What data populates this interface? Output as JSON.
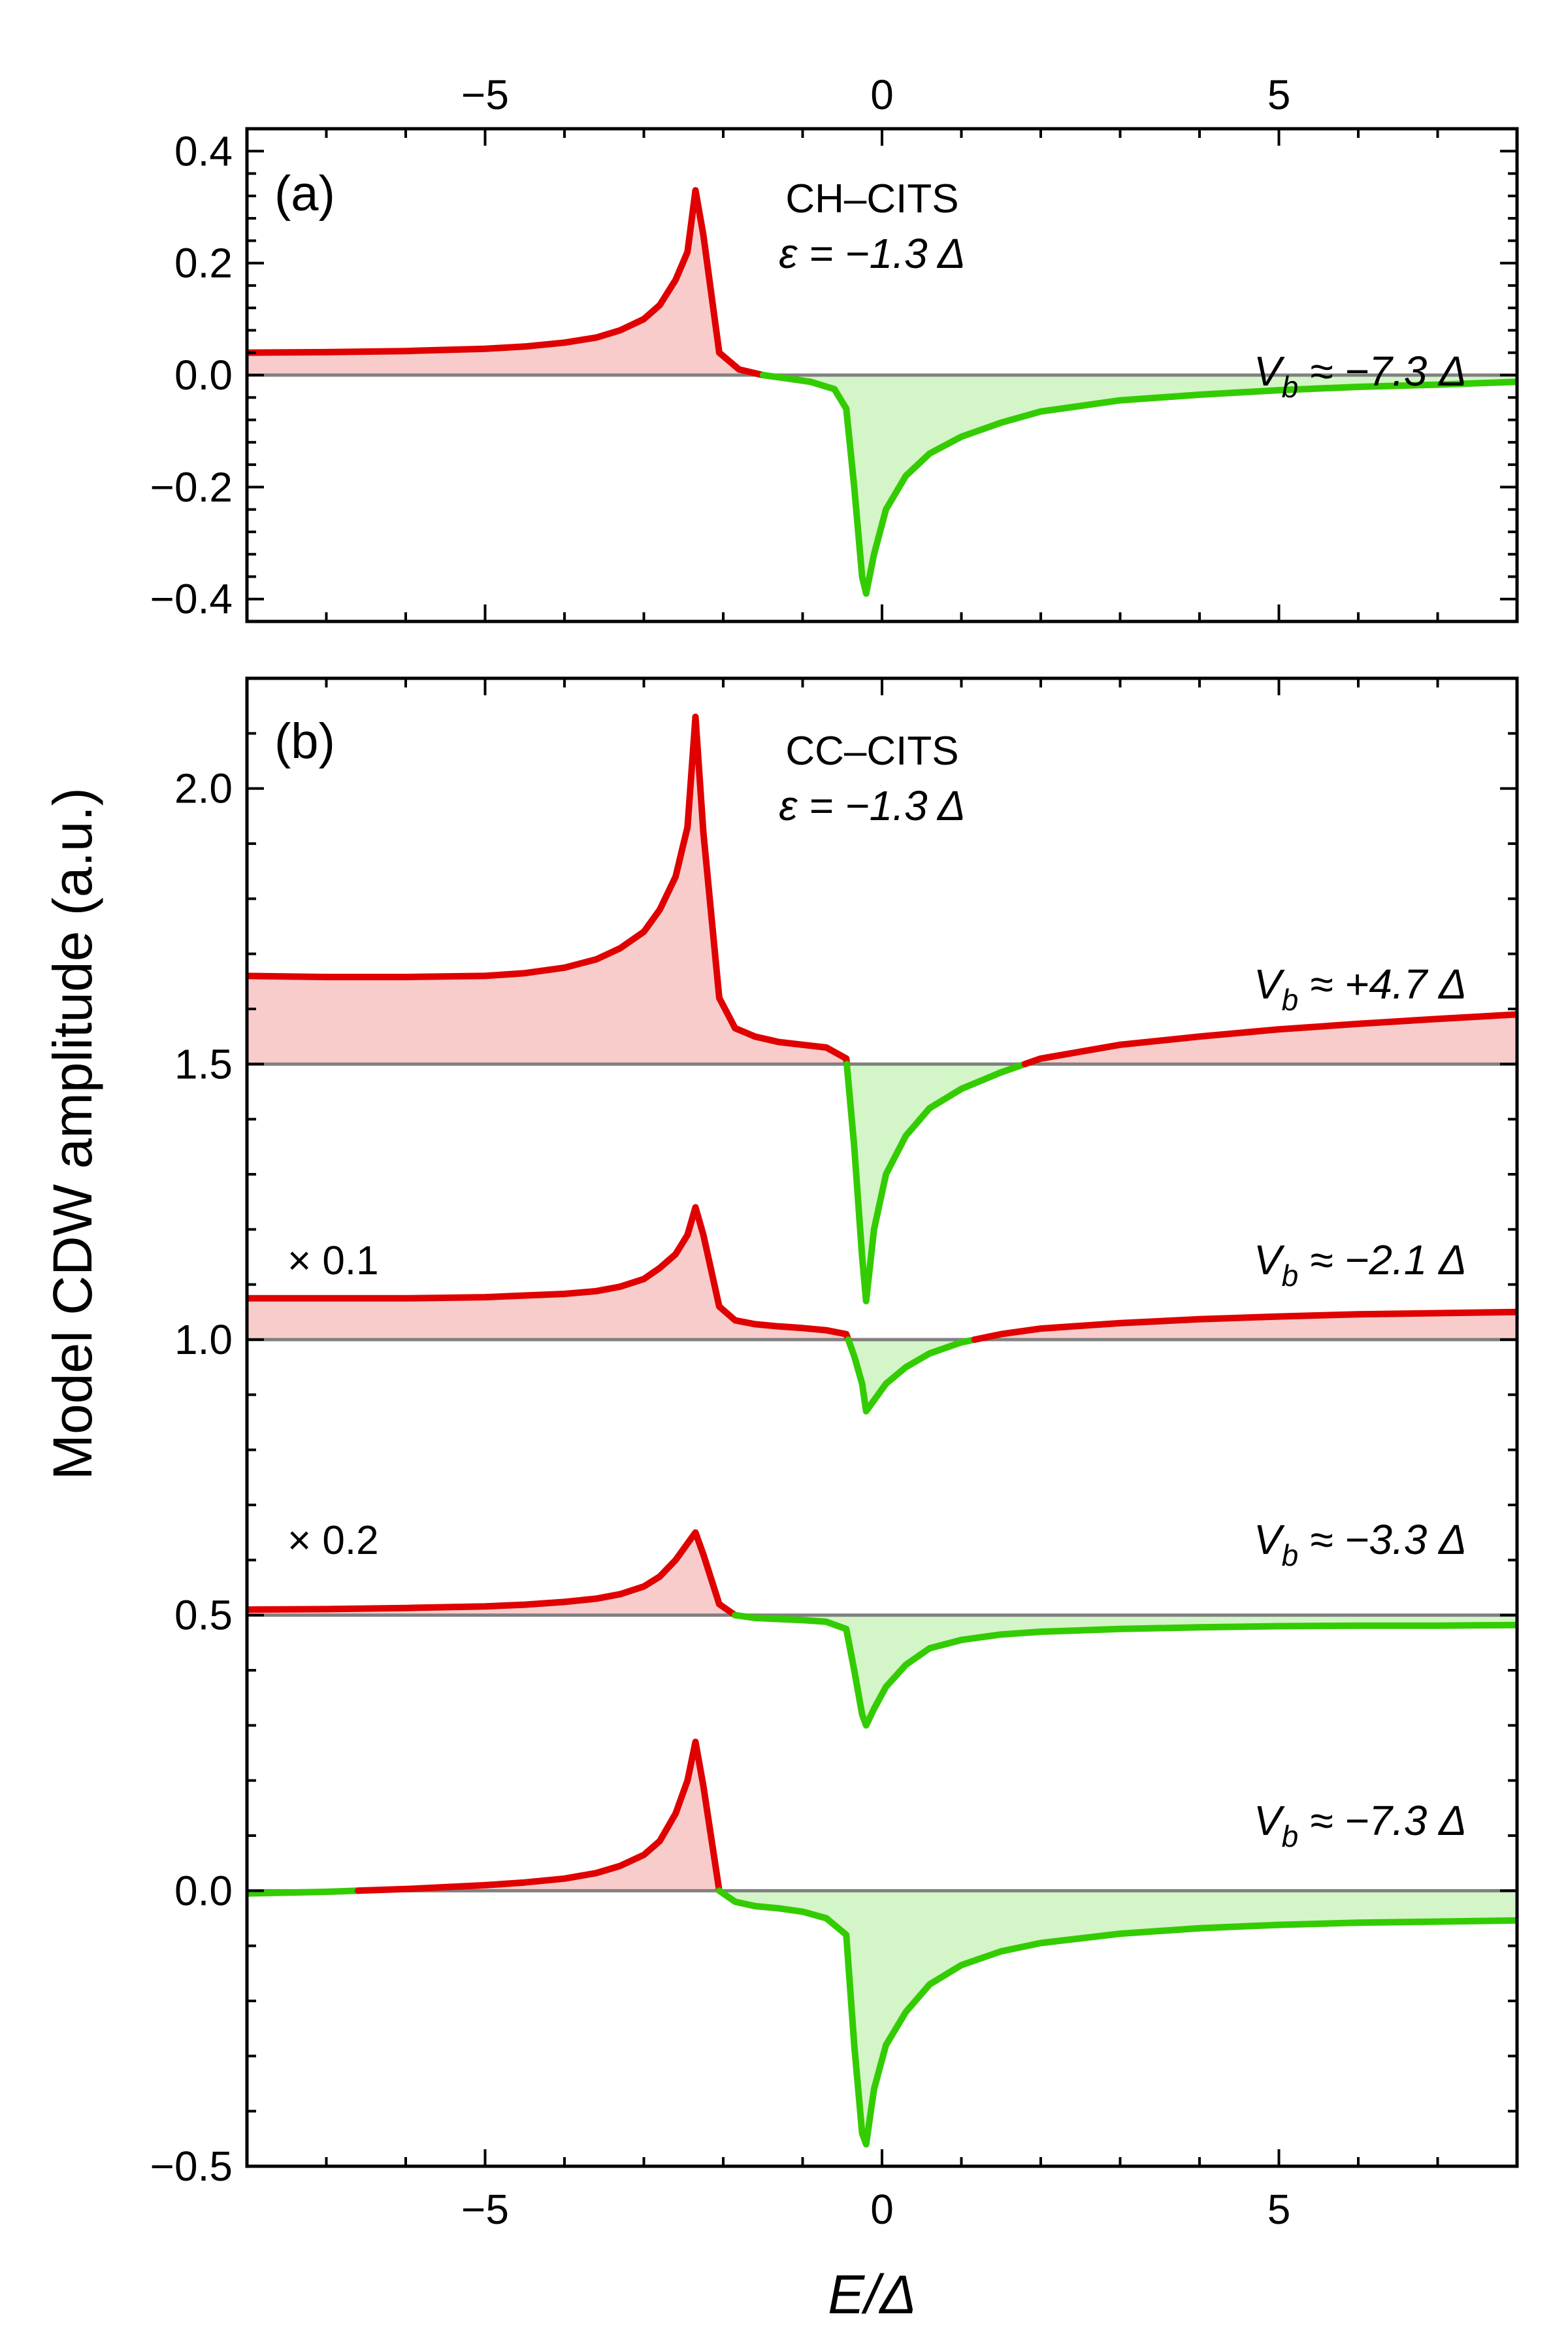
{
  "chart_data": [
    {
      "id": "a",
      "type": "line",
      "panel_label": "(a)",
      "title": "CH–CITS",
      "subtitle": "ε = −1.3 Δ",
      "xlabel": "",
      "ylabel": "",
      "xlim": [
        -8,
        8
      ],
      "ylim": [
        -0.44,
        0.44
      ],
      "xticks": [
        -5,
        0,
        5
      ],
      "xtick_labels": [
        "−5",
        "0",
        "5"
      ],
      "xtick_position": "top",
      "yticks": [
        0.4,
        0.2,
        0.0,
        -0.2,
        -0.4
      ],
      "ytick_labels": [
        "0.4",
        "0.2",
        "0.0",
        "−0.2",
        "−0.4"
      ],
      "colors": {
        "positive": "#e00000",
        "negative": "#33cc00",
        "positive_fill": "#f9cccc",
        "negative_fill": "#d4f5c8",
        "baseline": "#808080"
      },
      "series": [
        {
          "name": "Vb ≈ −7.3 Δ",
          "label_main": "V",
          "label_sub": "b",
          "label_rest": " ≈ −7.3 Δ",
          "offset": 0.0,
          "scale_note": "",
          "x": [
            -8,
            -7,
            -6,
            -5,
            -4.5,
            -4,
            -3.6,
            -3.3,
            -3.0,
            -2.8,
            -2.6,
            -2.45,
            -2.35,
            -2.25,
            -2.05,
            -1.8,
            -1.5,
            -1.2,
            -0.9,
            -0.6,
            -0.45,
            -0.35,
            -0.25,
            -0.2,
            -0.1,
            0.05,
            0.3,
            0.6,
            1.0,
            1.5,
            2.0,
            3.0,
            4.0,
            5.0,
            6.0,
            7.0,
            8.0
          ],
          "y": [
            0.04,
            0.041,
            0.043,
            0.047,
            0.051,
            0.058,
            0.067,
            0.08,
            0.1,
            0.125,
            0.17,
            0.22,
            0.33,
            0.25,
            0.04,
            0.01,
            0.0,
            -0.006,
            -0.012,
            -0.025,
            -0.06,
            -0.2,
            -0.36,
            -0.39,
            -0.32,
            -0.24,
            -0.18,
            -0.14,
            -0.11,
            -0.085,
            -0.065,
            -0.045,
            -0.035,
            -0.027,
            -0.021,
            -0.017,
            -0.012
          ]
        }
      ]
    },
    {
      "id": "b",
      "type": "line",
      "panel_label": "(b)",
      "title": "CC–CITS",
      "subtitle": "ε = −1.3 Δ",
      "xlabel": "E/Δ",
      "ylabel": "Model CDW amplitude (a.u.)",
      "xlim": [
        -8,
        8
      ],
      "ylim": [
        -0.5,
        2.2
      ],
      "xticks": [
        -5,
        0,
        5
      ],
      "xtick_labels": [
        "−5",
        "0",
        "5"
      ],
      "xtick_position": "bottom",
      "yticks": [
        2.0,
        1.5,
        1.0,
        0.5,
        0.0,
        -0.5
      ],
      "ytick_labels": [
        "2.0",
        "1.5",
        "1.0",
        "0.5",
        "0.0",
        "−0.5"
      ],
      "colors": {
        "positive": "#e00000",
        "negative": "#33cc00",
        "positive_fill": "#f9cccc",
        "negative_fill": "#d4f5c8",
        "baseline": "#808080"
      },
      "series": [
        {
          "name": "Vb ≈ +4.7 Δ",
          "label_main": "V",
          "label_sub": "b",
          "label_rest": " ≈ +4.7 Δ",
          "offset": 1.5,
          "scale_note": "",
          "x": [
            -8,
            -7,
            -6,
            -5,
            -4.5,
            -4,
            -3.6,
            -3.3,
            -3.0,
            -2.8,
            -2.6,
            -2.45,
            -2.35,
            -2.25,
            -2.05,
            -1.85,
            -1.6,
            -1.3,
            -1.0,
            -0.7,
            -0.45,
            -0.35,
            -0.25,
            -0.2,
            -0.1,
            0.05,
            0.3,
            0.6,
            1.0,
            1.5,
            2.0,
            3.0,
            4.0,
            5.0,
            6.0,
            7.0,
            8.0
          ],
          "y": [
            0.16,
            0.158,
            0.158,
            0.16,
            0.165,
            0.175,
            0.19,
            0.21,
            0.24,
            0.28,
            0.34,
            0.43,
            0.63,
            0.42,
            0.12,
            0.065,
            0.05,
            0.04,
            0.035,
            0.03,
            0.01,
            -0.15,
            -0.35,
            -0.43,
            -0.3,
            -0.2,
            -0.13,
            -0.08,
            -0.045,
            -0.015,
            0.01,
            0.035,
            0.05,
            0.063,
            0.073,
            0.082,
            0.09
          ]
        },
        {
          "name": "Vb ≈ −2.1 Δ",
          "label_main": "V",
          "label_sub": "b",
          "label_rest": " ≈ −2.1 Δ",
          "offset": 1.0,
          "scale_note": "× 0.1",
          "x": [
            -8,
            -7,
            -6,
            -5,
            -4.5,
            -4,
            -3.6,
            -3.3,
            -3.0,
            -2.8,
            -2.6,
            -2.45,
            -2.35,
            -2.25,
            -2.05,
            -1.85,
            -1.6,
            -1.3,
            -1.0,
            -0.7,
            -0.45,
            -0.35,
            -0.25,
            -0.2,
            -0.1,
            0.05,
            0.3,
            0.6,
            1.0,
            1.5,
            2.0,
            3.0,
            4.0,
            5.0,
            6.0,
            7.0,
            8.0
          ],
          "y": [
            0.075,
            0.075,
            0.075,
            0.077,
            0.08,
            0.083,
            0.088,
            0.096,
            0.11,
            0.13,
            0.155,
            0.19,
            0.24,
            0.19,
            0.06,
            0.035,
            0.028,
            0.024,
            0.021,
            0.017,
            0.01,
            -0.03,
            -0.08,
            -0.13,
            -0.11,
            -0.08,
            -0.05,
            -0.025,
            -0.005,
            0.01,
            0.02,
            0.03,
            0.037,
            0.042,
            0.046,
            0.048,
            0.05
          ]
        },
        {
          "name": "Vb ≈ −3.3 Δ",
          "label_main": "V",
          "label_sub": "b",
          "label_rest": " ≈ −3.3 Δ",
          "offset": 0.5,
          "scale_note": "× 0.2",
          "x": [
            -8,
            -7,
            -6,
            -5,
            -4.5,
            -4,
            -3.6,
            -3.3,
            -3.0,
            -2.8,
            -2.6,
            -2.45,
            -2.35,
            -2.25,
            -2.05,
            -1.85,
            -1.6,
            -1.3,
            -1.0,
            -0.7,
            -0.45,
            -0.35,
            -0.25,
            -0.2,
            -0.1,
            0.05,
            0.3,
            0.6,
            1.0,
            1.5,
            2.0,
            3.0,
            4.0,
            5.0,
            6.0,
            7.0,
            8.0
          ],
          "y": [
            0.01,
            0.011,
            0.013,
            0.016,
            0.019,
            0.024,
            0.03,
            0.038,
            0.052,
            0.07,
            0.1,
            0.13,
            0.15,
            0.11,
            0.02,
            0.0,
            -0.005,
            -0.007,
            -0.009,
            -0.012,
            -0.025,
            -0.1,
            -0.18,
            -0.2,
            -0.17,
            -0.13,
            -0.09,
            -0.06,
            -0.045,
            -0.035,
            -0.03,
            -0.025,
            -0.022,
            -0.02,
            -0.019,
            -0.019,
            -0.018
          ]
        },
        {
          "name": "Vb ≈ −7.3 Δ",
          "label_main": "V",
          "label_sub": "b",
          "label_rest": " ≈ −7.3 Δ",
          "offset": 0.0,
          "scale_note": "",
          "x": [
            -8,
            -7,
            -6,
            -5,
            -4.5,
            -4,
            -3.6,
            -3.3,
            -3.0,
            -2.8,
            -2.6,
            -2.45,
            -2.35,
            -2.25,
            -2.05,
            -1.85,
            -1.6,
            -1.3,
            -1.0,
            -0.7,
            -0.45,
            -0.35,
            -0.25,
            -0.2,
            -0.1,
            0.05,
            0.3,
            0.6,
            1.0,
            1.5,
            2.0,
            3.0,
            4.0,
            5.0,
            6.0,
            7.0,
            8.0
          ],
          "y": [
            -0.005,
            -0.002,
            0.003,
            0.01,
            0.015,
            0.022,
            0.032,
            0.045,
            0.065,
            0.09,
            0.14,
            0.2,
            0.27,
            0.19,
            0.0,
            -0.02,
            -0.028,
            -0.032,
            -0.038,
            -0.05,
            -0.08,
            -0.28,
            -0.44,
            -0.46,
            -0.36,
            -0.28,
            -0.22,
            -0.17,
            -0.135,
            -0.11,
            -0.095,
            -0.078,
            -0.068,
            -0.062,
            -0.058,
            -0.056,
            -0.054
          ]
        }
      ]
    }
  ]
}
